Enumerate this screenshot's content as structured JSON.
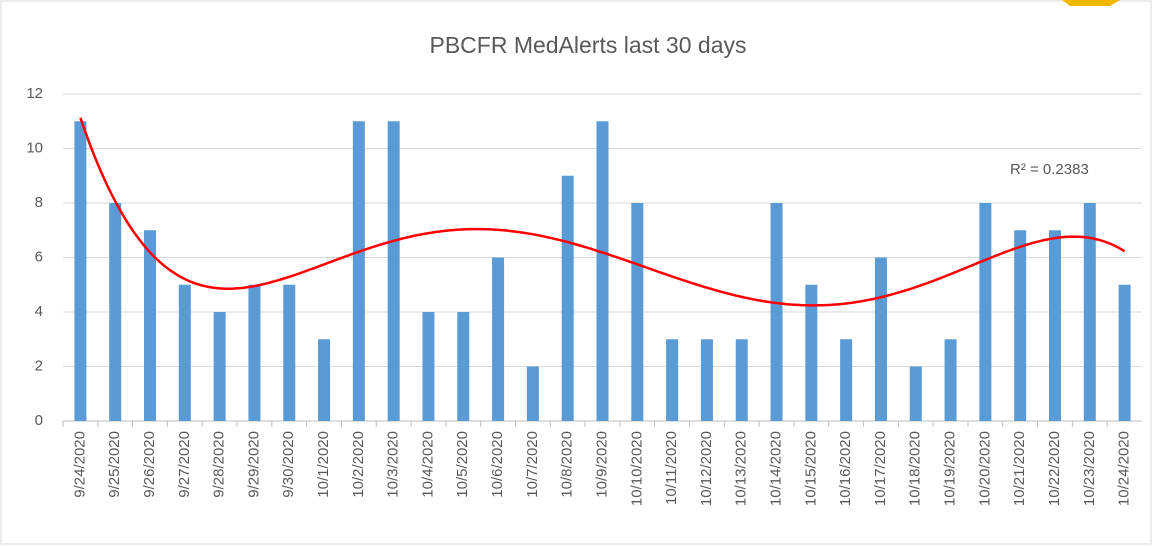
{
  "chart_data": {
    "type": "bar",
    "title": "PBCFR MedAlerts last 30 days",
    "categories": [
      "9/24/2020",
      "9/25/2020",
      "9/26/2020",
      "9/27/2020",
      "9/28/2020",
      "9/29/2020",
      "9/30/2020",
      "10/1/2020",
      "10/2/2020",
      "10/3/2020",
      "10/4/2020",
      "10/5/2020",
      "10/6/2020",
      "10/7/2020",
      "10/8/2020",
      "10/9/2020",
      "10/10/2020",
      "10/11/2020",
      "10/12/2020",
      "10/13/2020",
      "10/14/2020",
      "10/15/2020",
      "10/16/2020",
      "10/17/2020",
      "10/18/2020",
      "10/19/2020",
      "10/20/2020",
      "10/21/2020",
      "10/22/2020",
      "10/23/2020",
      "10/24/2020"
    ],
    "values": [
      11,
      8,
      7,
      5,
      4,
      5,
      5,
      3,
      11,
      11,
      4,
      4,
      6,
      2,
      9,
      11,
      8,
      3,
      3,
      3,
      8,
      5,
      3,
      6,
      2,
      3,
      8,
      7,
      7,
      8,
      5
    ],
    "color": "#5b9bd5",
    "ylim": [
      0,
      12
    ],
    "yticks": [
      0,
      2,
      4,
      6,
      8,
      10,
      12
    ],
    "grid": true,
    "trendline": {
      "type": "polynomial",
      "order": 5,
      "color": "#ff0000",
      "label": "R² = 0.2383"
    }
  }
}
